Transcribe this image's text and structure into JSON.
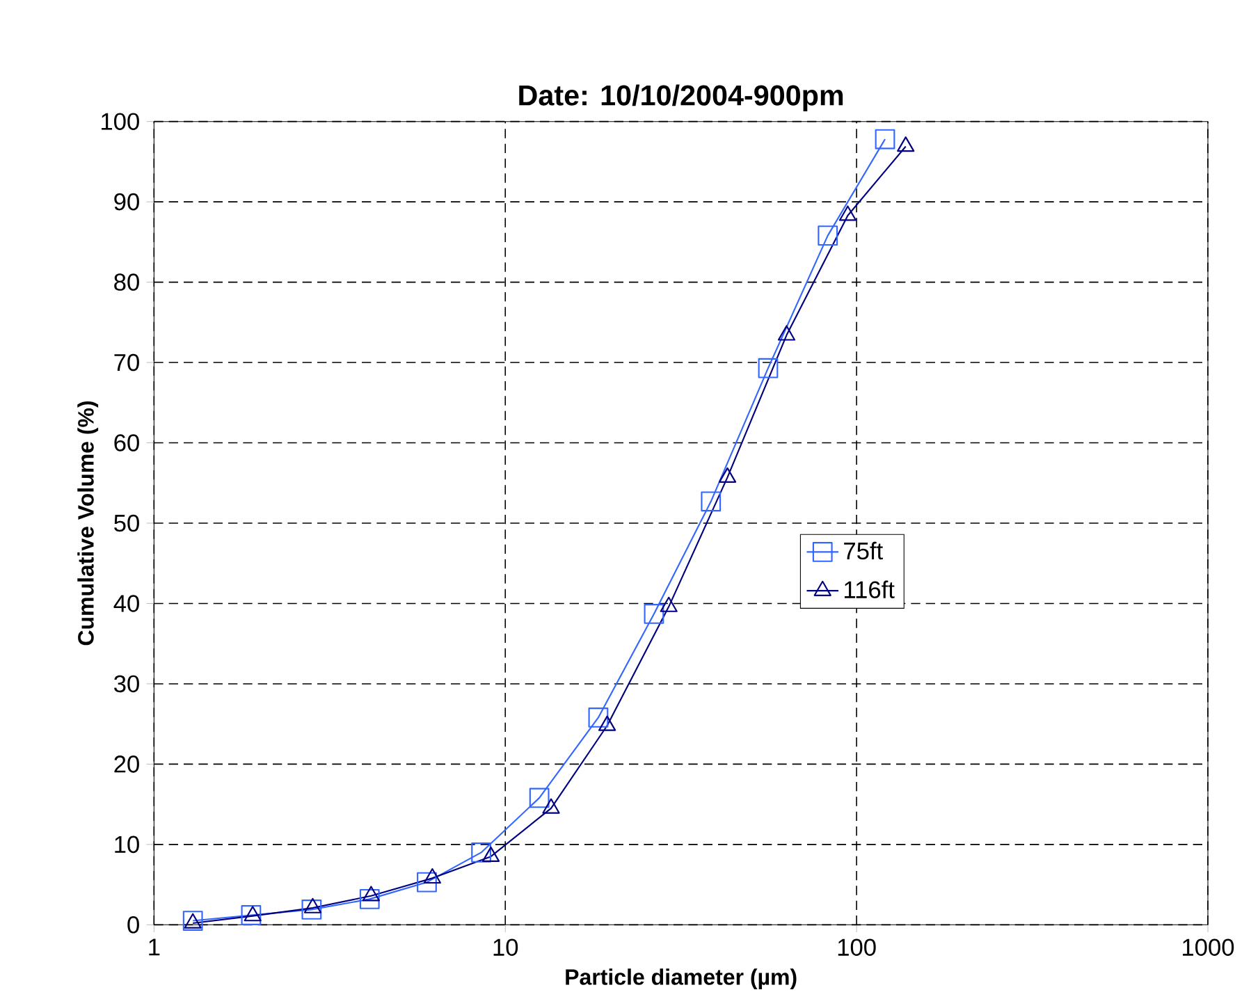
{
  "chart_data": {
    "type": "line",
    "title": "Date: 10/10/2004-900pm",
    "xlabel": "Particle diameter (µm)",
    "ylabel": "Cumulative Volume (%)",
    "log": "x",
    "xlim": [
      1,
      1000
    ],
    "xticks": [
      1,
      10,
      100,
      1000
    ],
    "ylim": [
      0,
      100
    ],
    "yticks": [
      0,
      10,
      20,
      30,
      40,
      50,
      60,
      70,
      80,
      90,
      100
    ],
    "grid": true,
    "legend": "right",
    "line_style": "solid",
    "series": [
      {
        "name": "75ft",
        "color": "#3366ff",
        "marker": "square",
        "x": [
          1.29,
          1.89,
          2.81,
          4.11,
          5.98,
          8.54,
          12.5,
          18.4,
          26.5,
          38.5,
          56,
          82.8,
          120.5
        ],
        "values": [
          0.5,
          1.2,
          1.9,
          3.2,
          5.3,
          9.0,
          15.8,
          25.8,
          38.7,
          52.7,
          69.3,
          85.8,
          97.8
        ]
      },
      {
        "name": "116ft",
        "color": "#000080",
        "marker": "triangle",
        "x": [
          1.29,
          1.91,
          2.83,
          4.15,
          6.2,
          9.1,
          13.5,
          19.5,
          29.2,
          42.9,
          63.2,
          94.4,
          138
        ],
        "values": [
          0.2,
          1.1,
          2.1,
          3.6,
          5.8,
          8.5,
          14.5,
          24.8,
          39.6,
          55.7,
          73.4,
          88.3,
          96.9
        ]
      }
    ]
  }
}
